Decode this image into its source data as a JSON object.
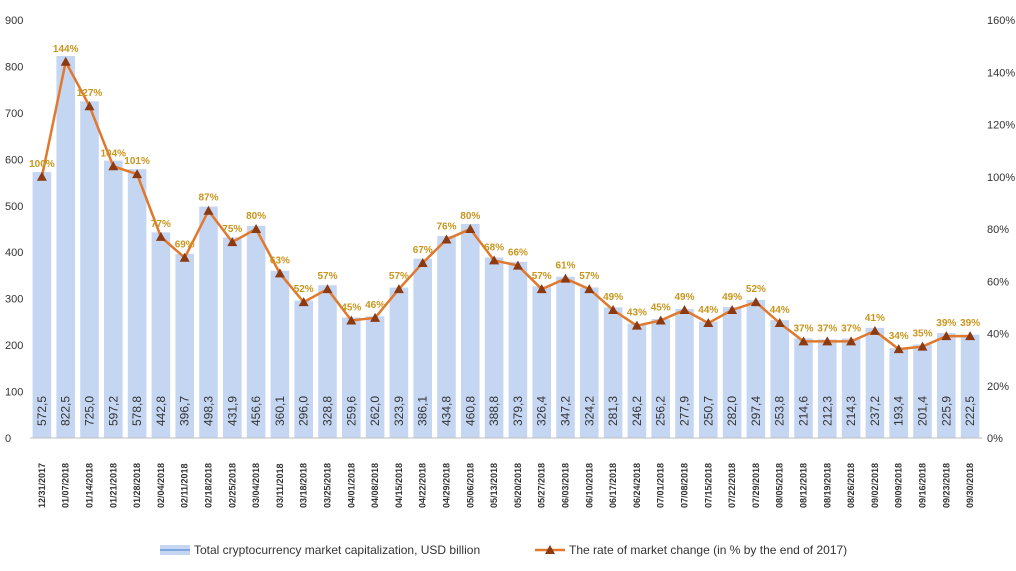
{
  "chart_data": {
    "type": "bar+line",
    "categories": [
      "12/31/2017",
      "01/07/2018",
      "01/14/2018",
      "01/21/2018",
      "01/28/2018",
      "02/04/2018",
      "02/11/2018",
      "02/18/2018",
      "02/25/2018",
      "03/04/2018",
      "03/11/2018",
      "03/18/2018",
      "03/25/2018",
      "04/01/2018",
      "04/08/2018",
      "04/15/2018",
      "04/22/2018",
      "04/29/2018",
      "05/06/2018",
      "05/13/2018",
      "05/20/2018",
      "05/27/2018",
      "06/03/2018",
      "06/10/2018",
      "06/17/2018",
      "06/24/2018",
      "07/01/2018",
      "07/08/2018",
      "07/15/2018",
      "07/22/2018",
      "07/29/2018",
      "08/05/2018",
      "08/12/2018",
      "08/19/2018",
      "08/26/2018",
      "09/02/2018",
      "09/09/2018",
      "09/16/2018",
      "09/23/2018",
      "09/30/2018"
    ],
    "bar_labels": [
      "572,5",
      "822,5",
      "725,0",
      "597,2",
      "578,8",
      "442,8",
      "396,7",
      "498,3",
      "431,9",
      "456,6",
      "360,1",
      "296,0",
      "328,8",
      "259,6",
      "262,0",
      "323,9",
      "386,1",
      "434,8",
      "460,8",
      "388,8",
      "379,3",
      "326,4",
      "347,2",
      "324,2",
      "281,3",
      "246,2",
      "256,2",
      "277,9",
      "250,7",
      "282,0",
      "297,4",
      "253,8",
      "214,6",
      "212,3",
      "214,3",
      "237,2",
      "193,4",
      "201,4",
      "225,9",
      "222,5"
    ],
    "series": [
      {
        "name": "Total cryptocurrency market capitalization, USD billion",
        "axis": "left",
        "values": [
          572.5,
          822.5,
          725.0,
          597.2,
          578.8,
          442.8,
          396.7,
          498.3,
          431.9,
          456.6,
          360.1,
          296.0,
          328.8,
          259.6,
          262.0,
          323.9,
          386.1,
          434.8,
          460.8,
          388.8,
          379.3,
          326.4,
          347.2,
          324.2,
          281.3,
          246.2,
          256.2,
          277.9,
          250.7,
          282.0,
          297.4,
          253.8,
          214.6,
          212.3,
          214.3,
          237.2,
          193.4,
          201.4,
          225.9,
          222.5
        ]
      },
      {
        "name": "The rate of market change (in % by the end of 2017)",
        "axis": "right",
        "values": [
          100,
          144,
          127,
          104,
          101,
          77,
          69,
          87,
          75,
          80,
          63,
          52,
          57,
          45,
          46,
          57,
          67,
          76,
          80,
          68,
          66,
          57,
          61,
          57,
          49,
          43,
          45,
          49,
          44,
          49,
          52,
          44,
          37,
          37,
          37,
          41,
          34,
          35,
          39,
          39
        ],
        "labels": [
          "100%",
          "144%",
          "127%",
          "104%",
          "101%",
          "77%",
          "69%",
          "87%",
          "75%",
          "80%",
          "63%",
          "52%",
          "57%",
          "45%",
          "46%",
          "57%",
          "67%",
          "76%",
          "80%",
          "68%",
          "66%",
          "57%",
          "61%",
          "57%",
          "49%",
          "43%",
          "45%",
          "49%",
          "44%",
          "49%",
          "52%",
          "44%",
          "37%",
          "37%",
          "37%",
          "41%",
          "34%",
          "35%",
          "39%",
          "39%"
        ]
      }
    ],
    "y_left": {
      "min": 0,
      "max": 900,
      "step": 100,
      "ticks": [
        "0",
        "100",
        "200",
        "300",
        "400",
        "500",
        "600",
        "700",
        "800",
        "900"
      ]
    },
    "y_right": {
      "min": 0,
      "max": 160,
      "step": 20,
      "ticks": [
        "0%",
        "20%",
        "40%",
        "60%",
        "80%",
        "100%",
        "120%",
        "140%",
        "160%"
      ]
    },
    "legend_placement": "bottom-center",
    "grid": false
  },
  "colors": {
    "bar": "#c5d6f2",
    "line": "#e0782e",
    "marker": "#8b3a12",
    "pct_label": "#c8961e",
    "legend_bar_swatch": "#7ea6e0"
  }
}
